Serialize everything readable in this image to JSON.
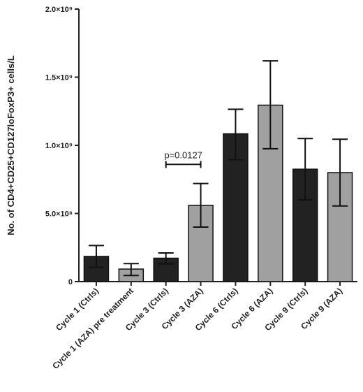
{
  "chart_data": {
    "type": "bar",
    "title": "",
    "xlabel": "",
    "ylabel": "No. of CD4+CD25+CD127loFoxP3+ cells/L",
    "ylim": [
      0,
      2000000000
    ],
    "grid": false,
    "yticks": [
      {
        "value": 0,
        "label": "0"
      },
      {
        "value": 500000000,
        "label": "5.0×10⁸"
      },
      {
        "value": 1000000000,
        "label": "1.0×10⁹"
      },
      {
        "value": 1500000000,
        "label": "1.5×10⁹"
      },
      {
        "value": 2000000000,
        "label": "2.0×10⁹"
      }
    ],
    "categories": [
      "Cycle 1 (Ctrls)",
      "Cycle 1 (AZA) pre treatment",
      "Cycle 3 (Ctrls)",
      "Cycle 3 (AZA)",
      "Cycle 6 (Ctrls)",
      "Cycle 6 (AZA)",
      "Cycle 9 (Ctrls)",
      "Cycle 9 (AZA)"
    ],
    "values": [
      185000000,
      92000000,
      172000000,
      560000000,
      1085000000,
      1295000000,
      825000000,
      800000000
    ],
    "error_low": [
      105000000,
      45000000,
      130000000,
      400000000,
      895000000,
      975000000,
      600000000,
      555000000
    ],
    "error_high": [
      265000000,
      132000000,
      210000000,
      720000000,
      1265000000,
      1620000000,
      1050000000,
      1045000000
    ],
    "colors": [
      "#222222",
      "#a0a0a0",
      "#222222",
      "#a0a0a0",
      "#222222",
      "#a0a0a0",
      "#222222",
      "#a0a0a0"
    ],
    "annotations": [
      {
        "text": "p=0.0127",
        "from_category": 2,
        "to_category": 3,
        "value": 860000000
      }
    ]
  }
}
